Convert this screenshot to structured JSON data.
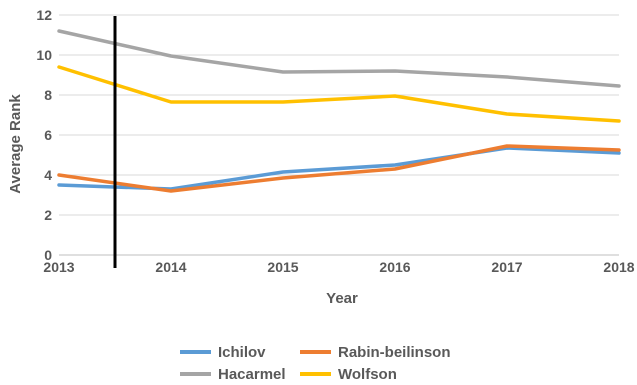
{
  "chart_data": {
    "type": "line",
    "x": [
      2013,
      2014,
      2015,
      2016,
      2017,
      2018
    ],
    "x_tick_labels": [
      "2013",
      "2014",
      "2015",
      "2016",
      "2017",
      "2018"
    ],
    "y_tick_labels": [
      "0",
      "2",
      "4",
      "6",
      "8",
      "10",
      "12"
    ],
    "xlabel": "Year",
    "ylabel": "Average Rank",
    "ylim": [
      0,
      12
    ],
    "grid": true,
    "legend_position": "bottom",
    "vertical_marker_x": 2013.5,
    "series": [
      {
        "name": "Ichilov",
        "color": "#5b9bd5",
        "values": [
          3.5,
          3.3,
          4.15,
          4.5,
          5.35,
          5.1
        ]
      },
      {
        "name": "Rabin-beilinson",
        "color": "#ed7d31",
        "values": [
          4.0,
          3.2,
          3.85,
          4.3,
          5.45,
          5.25
        ]
      },
      {
        "name": "Hacarmel",
        "color": "#a5a5a5",
        "values": [
          11.2,
          9.95,
          9.15,
          9.2,
          8.9,
          8.45
        ]
      },
      {
        "name": "Wolfson",
        "color": "#ffc000",
        "values": [
          9.4,
          7.65,
          7.65,
          7.95,
          7.05,
          6.7
        ]
      }
    ]
  }
}
